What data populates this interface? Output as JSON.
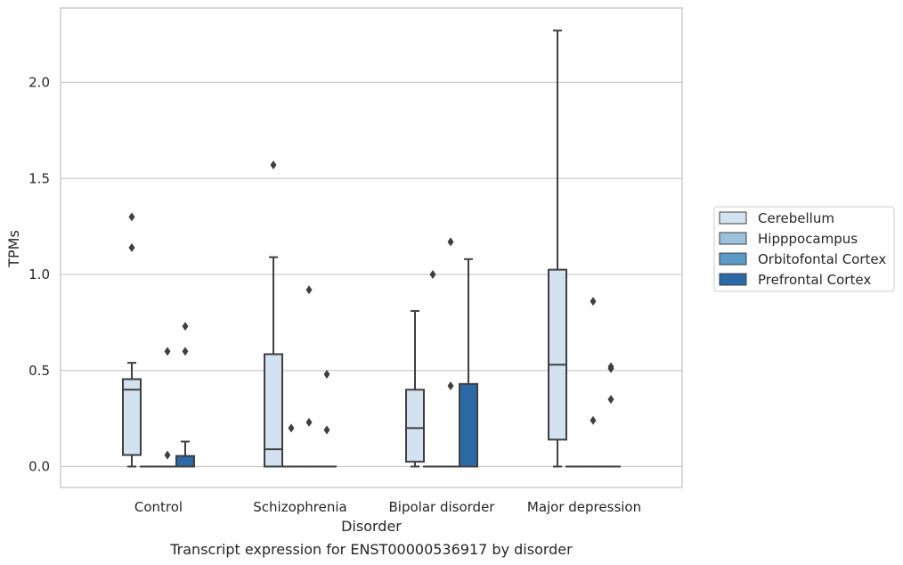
{
  "chart_data": {
    "type": "box",
    "xlabel": "Disorder",
    "ylabel": "TPMs",
    "caption": "Transcript expression for ENST00000536917 by disorder",
    "ylim": [
      -0.11,
      2.39
    ],
    "yticks": [
      "0.0",
      "0.5",
      "1.0",
      "1.5",
      "2.0"
    ],
    "ytick_values": [
      0.0,
      0.5,
      1.0,
      1.5,
      2.0
    ],
    "grid": "horizontal",
    "legend_position": "right",
    "categories": [
      "Control",
      "Schizophrenia",
      "Bipolar disorder",
      "Major depression"
    ],
    "series": [
      {
        "name": "Cerebellum",
        "color": "#d2e2f0",
        "boxes": [
          {
            "category": "Control",
            "q1": 0.06,
            "median": 0.4,
            "q3": 0.455,
            "whisker_low": 0.0,
            "whisker_high": 0.54,
            "outliers": [
              1.14,
              1.3
            ]
          },
          {
            "category": "Schizophrenia",
            "q1": 0.0,
            "median": 0.09,
            "q3": 0.585,
            "whisker_low": 0.0,
            "whisker_high": 1.09,
            "outliers": [
              1.57
            ]
          },
          {
            "category": "Bipolar disorder",
            "q1": 0.025,
            "median": 0.2,
            "q3": 0.4,
            "whisker_low": 0.0,
            "whisker_high": 0.81,
            "outliers": []
          },
          {
            "category": "Major depression",
            "q1": 0.14,
            "median": 0.53,
            "q3": 1.025,
            "whisker_low": 0.0,
            "whisker_high": 2.27,
            "outliers": []
          }
        ]
      },
      {
        "name": "Hipppocampus",
        "color": "#9dc1dd",
        "boxes": [
          {
            "category": "Control",
            "q1": 0.0,
            "median": 0.0,
            "q3": 0.0,
            "whisker_low": 0.0,
            "whisker_high": 0.0,
            "outliers": []
          },
          {
            "category": "Schizophrenia",
            "q1": 0.0,
            "median": 0.0,
            "q3": 0.0,
            "whisker_low": 0.0,
            "whisker_high": 0.0,
            "outliers": [
              0.2
            ]
          },
          {
            "category": "Bipolar disorder",
            "q1": 0.0,
            "median": 0.0,
            "q3": 0.0,
            "whisker_low": 0.0,
            "whisker_high": 0.0,
            "outliers": [
              1.0
            ]
          },
          {
            "category": "Major depression",
            "q1": 0.0,
            "median": 0.0,
            "q3": 0.0,
            "whisker_low": 0.0,
            "whisker_high": 0.0,
            "outliers": []
          }
        ]
      },
      {
        "name": "Orbitofontal Cortex",
        "color": "#5a9ac6",
        "boxes": [
          {
            "category": "Control",
            "q1": 0.0,
            "median": 0.0,
            "q3": 0.0,
            "whisker_low": 0.0,
            "whisker_high": 0.0,
            "outliers": [
              0.06,
              0.6
            ]
          },
          {
            "category": "Schizophrenia",
            "q1": 0.0,
            "median": 0.0,
            "q3": 0.0,
            "whisker_low": 0.0,
            "whisker_high": 0.0,
            "outliers": [
              0.23,
              0.92
            ]
          },
          {
            "category": "Bipolar disorder",
            "q1": 0.0,
            "median": 0.0,
            "q3": 0.0,
            "whisker_low": 0.0,
            "whisker_high": 0.0,
            "outliers": [
              0.42,
              1.17
            ]
          },
          {
            "category": "Major depression",
            "q1": 0.0,
            "median": 0.0,
            "q3": 0.0,
            "whisker_low": 0.0,
            "whisker_high": 0.0,
            "outliers": [
              0.24,
              0.86
            ]
          }
        ]
      },
      {
        "name": "Prefrontal Cortex",
        "color": "#2b6aa6",
        "boxes": [
          {
            "category": "Control",
            "q1": 0.0,
            "median": 0.0,
            "q3": 0.055,
            "whisker_low": 0.0,
            "whisker_high": 0.13,
            "outliers": [
              0.6,
              0.73
            ]
          },
          {
            "category": "Schizophrenia",
            "q1": 0.0,
            "median": 0.0,
            "q3": 0.0,
            "whisker_low": 0.0,
            "whisker_high": 0.0,
            "outliers": [
              0.19,
              0.48
            ]
          },
          {
            "category": "Bipolar disorder",
            "q1": 0.0,
            "median": 0.0,
            "q3": 0.43,
            "whisker_low": 0.0,
            "whisker_high": 1.08,
            "outliers": []
          },
          {
            "category": "Major depression",
            "q1": 0.0,
            "median": 0.0,
            "q3": 0.0,
            "whisker_low": 0.0,
            "whisker_high": 0.0,
            "outliers": [
              0.35,
              0.51,
              0.52
            ]
          }
        ]
      }
    ]
  }
}
